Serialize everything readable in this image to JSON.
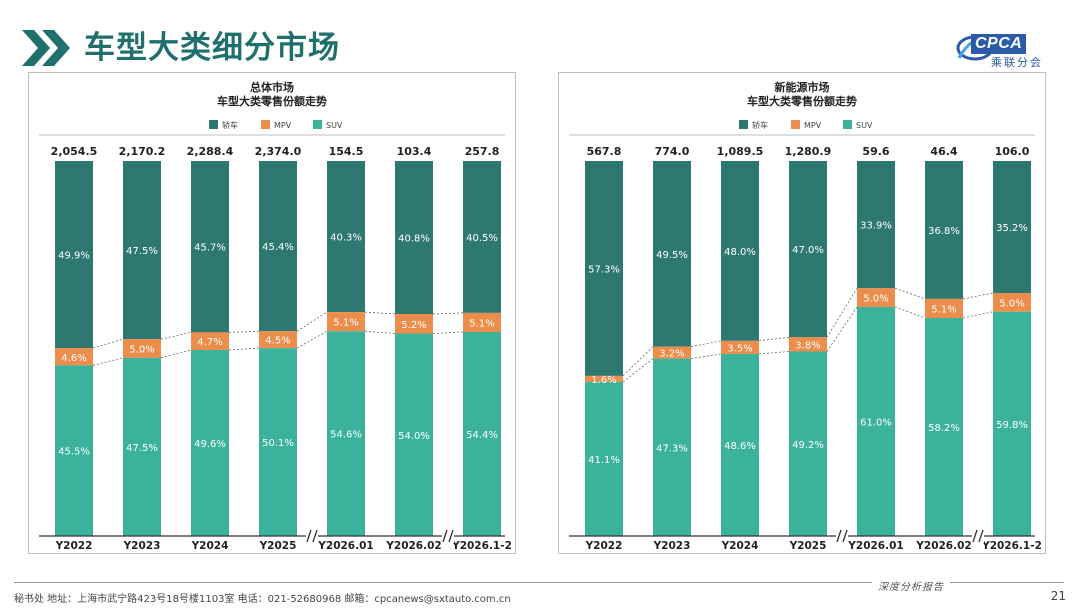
{
  "header": {
    "title": "车型大类细分市场",
    "logo_abbr": "CPCA",
    "logo_cn": "乘联分会"
  },
  "footer": {
    "text": "秘书处  地址：上海市武宁路423号18号楼1103室  电话：021-52680968  邮箱：cpcanews@sxtauto.com.cn",
    "tag": "深度分析报告",
    "page": "21"
  },
  "colors": {
    "sedan": "#2e7872",
    "mpv": "#ec8d4b",
    "suv": "#3bb39c"
  },
  "chart_data": [
    {
      "type": "bar",
      "stacked": "percent",
      "title": "总体市场",
      "subtitle": "车型大类零售份额走势",
      "legend": [
        "轿车",
        "MPV",
        "SUV"
      ],
      "legend_position": "top",
      "categories": [
        "Y2022",
        "Y2023",
        "Y2024",
        "Y2025",
        "Y2026.01",
        "Y2026.02",
        "Y2026.1-2"
      ],
      "totals": [
        "2,054.5",
        "2,170.2",
        "2,288.4",
        "2,374.0",
        "154.5",
        "103.4",
        "257.8"
      ],
      "axis_breaks": [
        "Y2025|Y2026.01",
        "Y2026.02|Y2026.1-2"
      ],
      "series": [
        {
          "name": "SUV",
          "values": [
            45.5,
            47.5,
            49.6,
            50.1,
            54.6,
            54.0,
            54.4
          ],
          "labels": [
            "45.5%",
            "47.5%",
            "49.6%",
            "50.1%",
            "54.6%",
            "54.0%",
            "54.4%"
          ]
        },
        {
          "name": "MPV",
          "values": [
            4.6,
            5.0,
            4.7,
            4.5,
            5.1,
            5.2,
            5.1
          ],
          "labels": [
            "4.6%",
            "5.0%",
            "4.7%",
            "4.5%",
            "5.1%",
            "5.2%",
            "5.1%"
          ]
        },
        {
          "name": "轿车",
          "values": [
            49.9,
            47.5,
            45.7,
            45.4,
            40.3,
            40.8,
            40.5
          ],
          "labels": [
            "49.9%",
            "47.5%",
            "45.7%",
            "45.4%",
            "40.3%",
            "40.8%",
            "40.5%"
          ]
        }
      ]
    },
    {
      "type": "bar",
      "stacked": "percent",
      "title": "新能源市场",
      "subtitle": "车型大类零售份额走势",
      "legend": [
        "轿车",
        "MPV",
        "SUV"
      ],
      "legend_position": "top",
      "categories": [
        "Y2022",
        "Y2023",
        "Y2024",
        "Y2025",
        "Y2026.01",
        "Y2026.02",
        "Y2026.1-2"
      ],
      "totals": [
        "567.8",
        "774.0",
        "1,089.5",
        "1,280.9",
        "59.6",
        "46.4",
        "106.0"
      ],
      "axis_breaks": [
        "Y2025|Y2026.01",
        "Y2026.02|Y2026.1-2"
      ],
      "series": [
        {
          "name": "SUV",
          "values": [
            41.1,
            47.3,
            48.6,
            49.2,
            61.0,
            58.2,
            59.8
          ],
          "labels": [
            "41.1%",
            "47.3%",
            "48.6%",
            "49.2%",
            "61.0%",
            "58.2%",
            "59.8%"
          ]
        },
        {
          "name": "MPV",
          "values": [
            1.6,
            3.2,
            3.5,
            3.8,
            5.0,
            5.1,
            5.0
          ],
          "labels": [
            "1.6%",
            "3.2%",
            "3.5%",
            "3.8%",
            "5.0%",
            "5.1%",
            "5.0%"
          ]
        },
        {
          "name": "轿车",
          "values": [
            57.3,
            49.5,
            48.0,
            47.0,
            33.9,
            36.8,
            35.2
          ],
          "labels": [
            "57.3%",
            "49.5%",
            "48.0%",
            "47.0%",
            "33.9%",
            "36.8%",
            "35.2%"
          ]
        }
      ]
    }
  ]
}
